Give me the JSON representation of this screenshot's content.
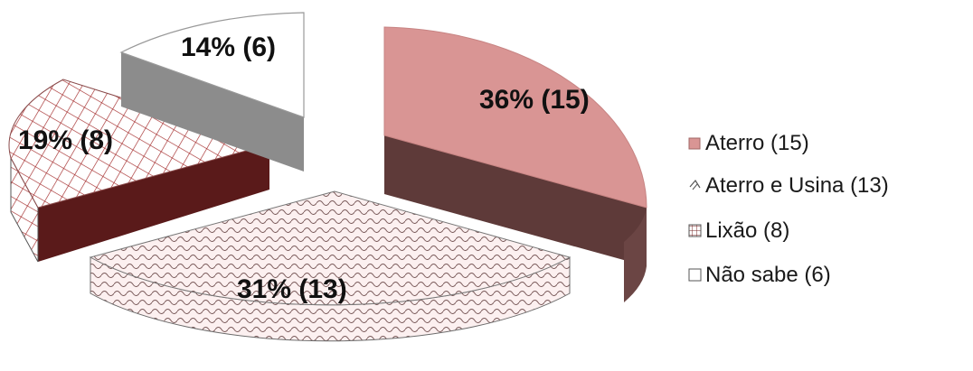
{
  "chart_data": {
    "type": "pie",
    "variant": "3d-exploded",
    "title": "",
    "slices": [
      {
        "name": "Aterro",
        "value": 15,
        "percent": 36,
        "label": "36% (15)",
        "legend": "Aterro (15)",
        "color": "#d99594",
        "side_color": "#5e3a39",
        "fill": "solid"
      },
      {
        "name": "Aterro e Usina",
        "value": 13,
        "percent": 31,
        "label": "31% (13)",
        "legend": "Aterro e Usina (13)",
        "color": "#fcecec",
        "side_color": "#fcecec",
        "fill": "scales"
      },
      {
        "name": "Lixão",
        "value": 8,
        "percent": 19,
        "label": "19% (8)",
        "legend": "Lixão (8)",
        "color": "#ffffff",
        "side_color": "#5a1a1a",
        "fill": "crosshatch"
      },
      {
        "name": "Não sabe",
        "value": 6,
        "percent": 14,
        "label": "14% (6)",
        "legend": "Não sabe (6)",
        "color": "#ffffff",
        "side_color": "#8c8c8c",
        "fill": "solid"
      }
    ],
    "legend_position": "right"
  }
}
